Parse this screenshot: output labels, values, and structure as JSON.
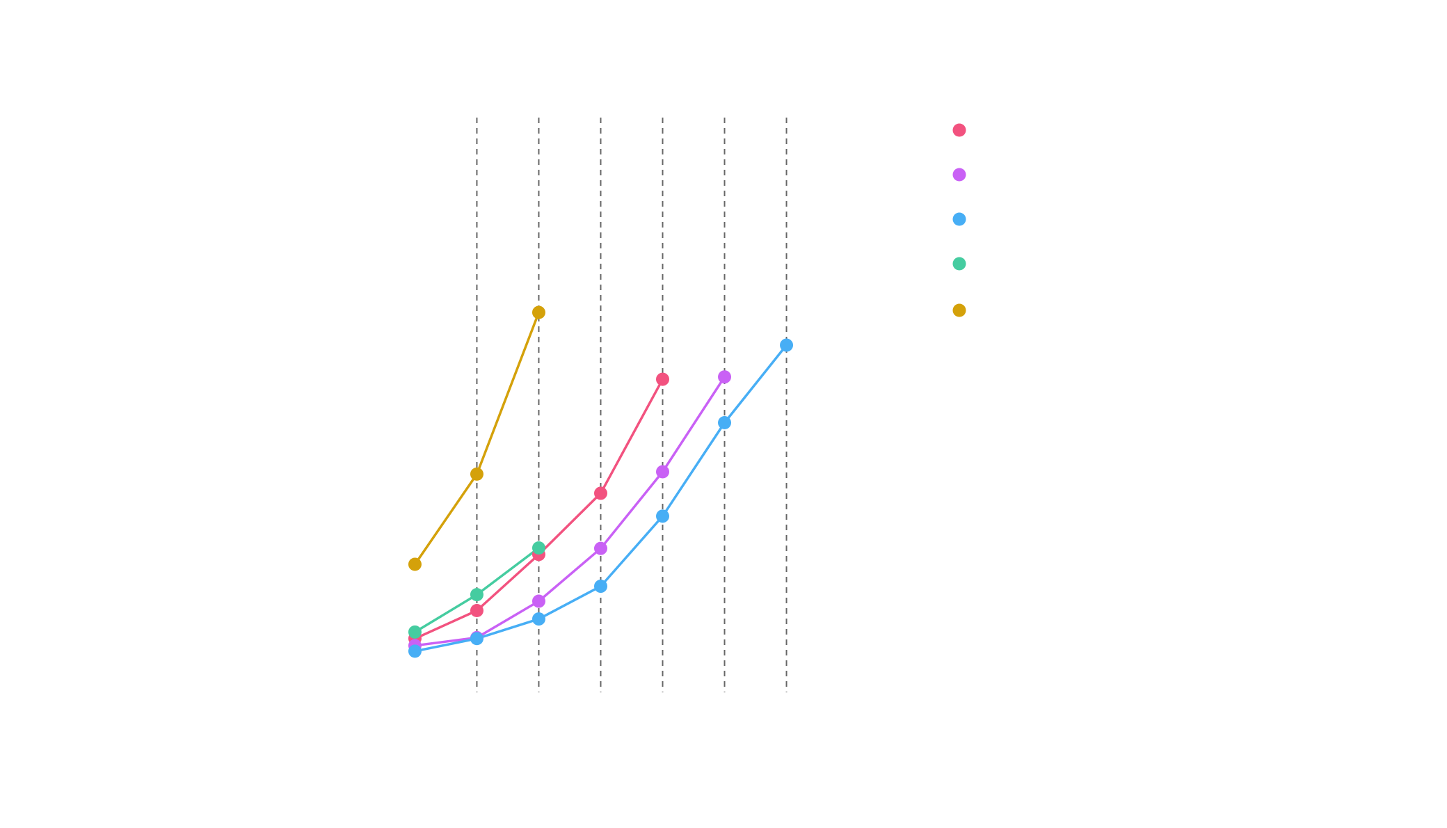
{
  "chart_data": {
    "type": "line",
    "title": "",
    "xlabel": "",
    "ylabel": "",
    "grid": false,
    "legend_position": "right",
    "xlim": [
      0.95,
      8.05
    ],
    "ylim": [
      0,
      1230
    ],
    "reference_lines_x": [
      2,
      3,
      4,
      5,
      6,
      7
    ],
    "series": [
      {
        "color": "#F2527F",
        "label": "",
        "points": [
          [
            1,
            115
          ],
          [
            2,
            175
          ],
          [
            3,
            295
          ],
          [
            4,
            426
          ],
          [
            5,
            670
          ]
        ]
      },
      {
        "color": "#C961F5",
        "label": "",
        "points": [
          [
            1,
            100
          ],
          [
            2,
            117
          ],
          [
            3,
            195
          ],
          [
            4,
            308
          ],
          [
            5,
            472
          ],
          [
            6,
            675
          ]
        ]
      },
      {
        "color": "#47AEF5",
        "label": "",
        "points": [
          [
            1,
            88
          ],
          [
            2,
            115
          ],
          [
            3,
            157
          ],
          [
            4,
            227
          ],
          [
            5,
            377
          ],
          [
            6,
            577
          ],
          [
            7,
            743
          ]
        ]
      },
      {
        "color": "#45CCA0",
        "label": "",
        "points": [
          [
            1,
            129
          ],
          [
            2,
            209
          ],
          [
            3,
            309
          ]
        ]
      },
      {
        "color": "#D4A10A",
        "label": "",
        "points": [
          [
            1,
            274
          ],
          [
            2,
            467
          ],
          [
            3,
            813
          ]
        ]
      }
    ]
  }
}
